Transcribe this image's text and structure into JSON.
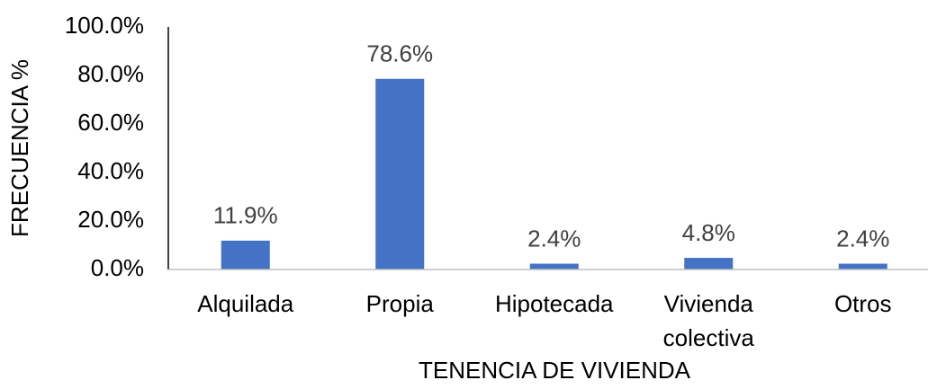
{
  "chart_data": {
    "type": "bar",
    "x_label": "TENENCIA DE VIVIENDA",
    "y_label": "FRECUENCIA %",
    "categories": [
      "Alquilada",
      "Propia",
      "Hipotecada",
      "Vivienda colectiva",
      "Otros"
    ],
    "values": [
      11.9,
      78.6,
      2.4,
      4.8,
      2.4
    ],
    "value_labels": [
      "11.9%",
      "78.6%",
      "2.4%",
      "4.8%",
      "2.4%"
    ],
    "color": "#4472c4",
    "ylim": [
      0,
      100
    ],
    "yticks": [
      {
        "value": 0,
        "label": "0.0%"
      },
      {
        "value": 20,
        "label": "20.0%"
      },
      {
        "value": 40,
        "label": "40.0%"
      },
      {
        "value": 60,
        "label": "60.0%"
      },
      {
        "value": 80,
        "label": "80.0%"
      },
      {
        "value": 100,
        "label": "100.0%"
      }
    ],
    "grid": false
  }
}
